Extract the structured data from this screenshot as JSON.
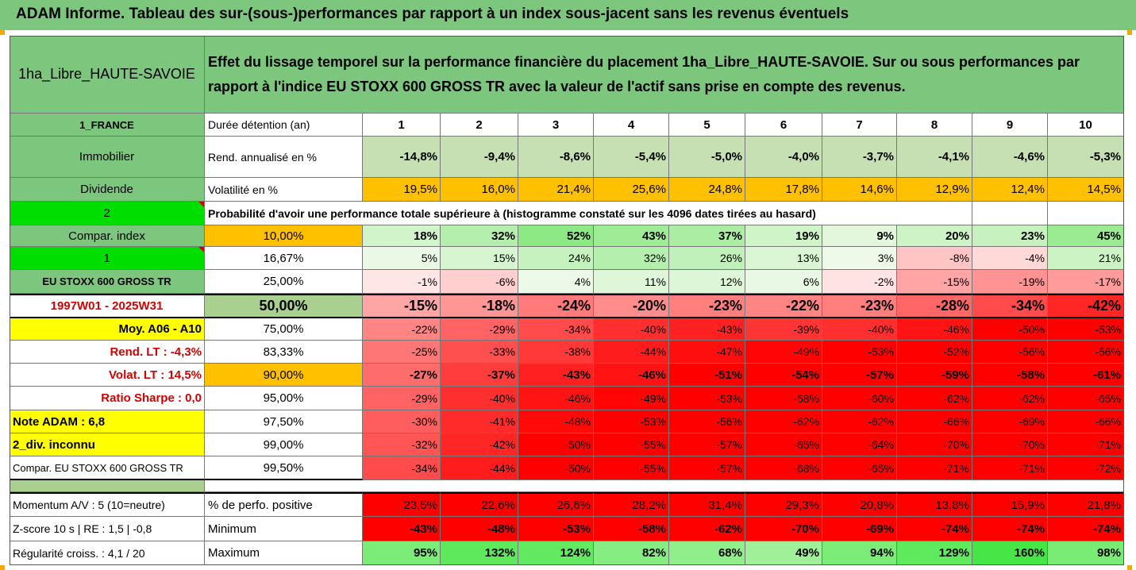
{
  "title": "ADAM Informe. Tableau des sur-(sous-)performances par rapport à un index sous-jacent sans les revenus éventuels",
  "header": {
    "fund_name": "1ha_Libre_HAUTE-SAVOIE",
    "description": "Effet du lissage temporel sur la performance financière du placement 1ha_Libre_HAUTE-SAVOIE. Sur ou sous performances par rapport à l'indice EU STOXX 600 GROSS TR avec la valeur de l'actif sans prise en compte des revenus."
  },
  "side": {
    "country": "1_FRANCE",
    "asset_type": "Immobilier",
    "income": "Dividende",
    "count_value": "2",
    "compar_index": "Compar. index",
    "one_value": "1",
    "index_name": "EU STOXX 600 GROSS TR",
    "period": "1997W01 - 2025W31",
    "moy": "Moy. A06 - A10",
    "rend_lt": "Rend. LT :   -4,3%",
    "volat_lt": "Volat. LT :   14,5%",
    "sharpe": "Ratio Sharpe :    0,0",
    "note": "Note ADAM : 6,8",
    "div": "2_div. inconnu",
    "compar_label": "Compar. EU STOXX 600 GROSS TR"
  },
  "rows_labels": {
    "duration": "Durée détention (an)",
    "rendement": "Rend. annualisé en %",
    "volatility": "Volatilité en %",
    "probability": "Probabilité d'avoir une performance totale supérieure à (histogramme constaté sur les 4096 dates tirées au hasard)",
    "positive": "% de perfo. positive",
    "minimum": "Minimum",
    "maximum": "Maximum"
  },
  "years": [
    "1",
    "2",
    "3",
    "4",
    "5",
    "6",
    "7",
    "8",
    "9",
    "10"
  ],
  "rendement": [
    "-14,8%",
    "-9,4%",
    "-8,6%",
    "-5,4%",
    "-5,0%",
    "-4,0%",
    "-3,7%",
    "-4,1%",
    "-4,6%",
    "-5,3%"
  ],
  "volatility": [
    "19,5%",
    "16,0%",
    "21,4%",
    "25,6%",
    "24,8%",
    "17,8%",
    "14,6%",
    "12,9%",
    "12,4%",
    "14,5%"
  ],
  "percentile_rows": [
    {
      "p": "10,00%",
      "values": [
        "18%",
        "32%",
        "52%",
        "43%",
        "37%",
        "19%",
        "9%",
        "20%",
        "23%",
        "45%"
      ]
    },
    {
      "p": "16,67%",
      "values": [
        "5%",
        "15%",
        "24%",
        "32%",
        "26%",
        "13%",
        "3%",
        "-8%",
        "-4%",
        "21%"
      ]
    },
    {
      "p": "25,00%",
      "values": [
        "-1%",
        "-6%",
        "4%",
        "11%",
        "12%",
        "6%",
        "-2%",
        "-15%",
        "-19%",
        "-17%"
      ]
    },
    {
      "p": "50,00%",
      "values": [
        "-15%",
        "-18%",
        "-24%",
        "-20%",
        "-23%",
        "-22%",
        "-23%",
        "-28%",
        "-34%",
        "-42%"
      ]
    },
    {
      "p": "75,00%",
      "values": [
        "-22%",
        "-29%",
        "-34%",
        "-40%",
        "-43%",
        "-39%",
        "-40%",
        "-46%",
        "-50%",
        "-53%"
      ]
    },
    {
      "p": "83,33%",
      "values": [
        "-25%",
        "-33%",
        "-38%",
        "-44%",
        "-47%",
        "-49%",
        "-53%",
        "-52%",
        "-56%",
        "-56%"
      ]
    },
    {
      "p": "90,00%",
      "values": [
        "-27%",
        "-37%",
        "-43%",
        "-46%",
        "-51%",
        "-54%",
        "-57%",
        "-59%",
        "-58%",
        "-61%"
      ]
    },
    {
      "p": "95,00%",
      "values": [
        "-29%",
        "-40%",
        "-46%",
        "-49%",
        "-53%",
        "-58%",
        "-60%",
        "-62%",
        "-62%",
        "-65%"
      ]
    },
    {
      "p": "97,50%",
      "values": [
        "-30%",
        "-41%",
        "-48%",
        "-53%",
        "-56%",
        "-62%",
        "-62%",
        "-66%",
        "-69%",
        "-66%"
      ]
    },
    {
      "p": "99,00%",
      "values": [
        "-32%",
        "-42%",
        "-50%",
        "-55%",
        "-57%",
        "-65%",
        "-64%",
        "-70%",
        "-70%",
        "-71%"
      ]
    },
    {
      "p": "99,50%",
      "values": [
        "-34%",
        "-44%",
        "-50%",
        "-55%",
        "-57%",
        "-68%",
        "-65%",
        "-71%",
        "-71%",
        "-72%"
      ]
    }
  ],
  "footer": {
    "momentum": "Momentum A/V : 5 (10=neutre)",
    "zscore": "Z-score 10 s  |  RE : 1,5  |  -0,8",
    "regularity": "Régularité croiss. : 4,1 / 20"
  },
  "positive": [
    "23,5%",
    "22,6%",
    "26,6%",
    "28,2%",
    "31,4%",
    "29,3%",
    "20,8%",
    "13,8%",
    "15,9%",
    "21,8%"
  ],
  "minimum": [
    "-43%",
    "-48%",
    "-53%",
    "-58%",
    "-62%",
    "-70%",
    "-69%",
    "-74%",
    "-74%",
    "-74%"
  ],
  "maximum": [
    "95%",
    "132%",
    "124%",
    "82%",
    "68%",
    "49%",
    "94%",
    "129%",
    "160%",
    "98%"
  ],
  "colors": {
    "header_green": "#7dc67e",
    "bright_green": "#00dd00",
    "orange": "#ffc000",
    "yellow": "#ffff00",
    "red": "#ff0000",
    "light_green": "#c6e0b4"
  }
}
